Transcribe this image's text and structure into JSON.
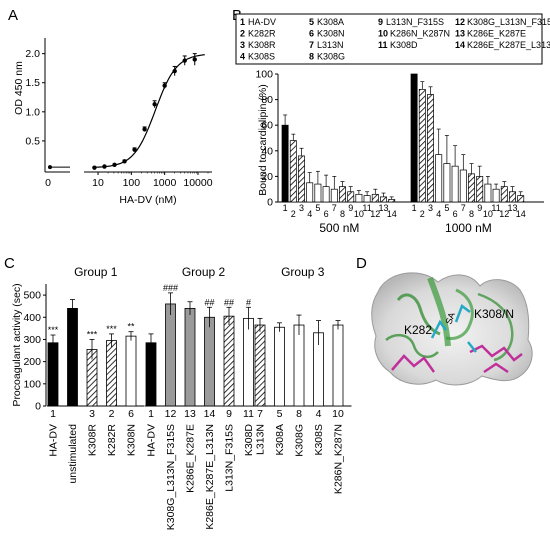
{
  "panels": {
    "A": {
      "label": "A",
      "chart_data": {
        "type": "line",
        "xlabel": "HA-DV (nM)",
        "ylabel": "OD 450 nm",
        "xscale": "log",
        "xlim": [
          5,
          20000
        ],
        "ylim": [
          0,
          2.2
        ],
        "xticks": [
          "0",
          "10",
          "100",
          "1000",
          "10000"
        ],
        "yticks": [
          "0.5",
          "1.0",
          "1.5",
          "2.0"
        ],
        "zero_point": {
          "x": 0,
          "y": 0.05
        },
        "points": [
          {
            "x": 7.8,
            "y": 0.04,
            "err": 0.01
          },
          {
            "x": 15.6,
            "y": 0.06,
            "err": 0.01
          },
          {
            "x": 31.3,
            "y": 0.09,
            "err": 0.01
          },
          {
            "x": 62.5,
            "y": 0.15,
            "err": 0.02
          },
          {
            "x": 125,
            "y": 0.35,
            "err": 0.03
          },
          {
            "x": 250,
            "y": 0.7,
            "err": 0.04
          },
          {
            "x": 500,
            "y": 1.13,
            "err": 0.06
          },
          {
            "x": 1000,
            "y": 1.45,
            "err": 0.05
          },
          {
            "x": 2000,
            "y": 1.7,
            "err": 0.08
          },
          {
            "x": 4000,
            "y": 1.88,
            "err": 0.08
          },
          {
            "x": 8000,
            "y": 1.9,
            "err": 0.1
          }
        ]
      }
    },
    "B": {
      "label": "B",
      "legend": [
        {
          "n": "1",
          "name": "HA-DV"
        },
        {
          "n": "5",
          "name": "K308A"
        },
        {
          "n": "9",
          "name": "L313N_F315S"
        },
        {
          "n": "12",
          "name": "K308G_L313N_F315S"
        },
        {
          "n": "2",
          "name": "K282R"
        },
        {
          "n": "6",
          "name": "K308N"
        },
        {
          "n": "10",
          "name": "K286N_K287N"
        },
        {
          "n": "13",
          "name": "K286E_K287E"
        },
        {
          "n": "3",
          "name": "K308R"
        },
        {
          "n": "7",
          "name": "L313N"
        },
        {
          "n": "11",
          "name": "K308D"
        },
        {
          "n": "14",
          "name": "K286E_K287E_L313N"
        },
        {
          "n": "4",
          "name": "K308S"
        },
        {
          "n": "8",
          "name": "K308G"
        }
      ],
      "chart_data": {
        "type": "bar",
        "ylabel": "Bound to cardiolipin (%)",
        "ylim": [
          0,
          100
        ],
        "yticks": [
          "0",
          "20",
          "40",
          "60",
          "80",
          "100"
        ],
        "groups": [
          {
            "label": "500 nM",
            "categories": [
              "1",
              "2",
              "3",
              "4",
              "5",
              "6",
              "7",
              "8",
              "9",
              "10",
              "11",
              "12",
              "13",
              "14"
            ],
            "values": [
              60,
              48,
              36,
              15,
              14,
              12,
              10,
              12,
              8,
              6,
              5,
              6,
              4,
              2
            ],
            "errors": [
              8,
              5,
              6,
              8,
              10,
              9,
              10,
              4,
              4,
              3,
              3,
              4,
              3,
              2
            ],
            "fills": [
              "solid",
              "hatch",
              "hatch",
              "open",
              "open",
              "open",
              "open",
              "hatch",
              "hatch",
              "open",
              "open",
              "hatch",
              "hatch",
              "hatch"
            ]
          },
          {
            "label": "1000 nM",
            "categories": [
              "1",
              "2",
              "3",
              "4",
              "5",
              "6",
              "7",
              "8",
              "9",
              "10",
              "11",
              "12",
              "13",
              "14"
            ],
            "values": [
              100,
              88,
              84,
              37,
              30,
              28,
              25,
              22,
              20,
              14,
              10,
              12,
              8,
              5
            ],
            "errors": [
              0,
              6,
              6,
              20,
              22,
              16,
              12,
              8,
              8,
              6,
              4,
              4,
              4,
              3
            ],
            "fills": [
              "solid",
              "hatch",
              "hatch",
              "open",
              "open",
              "open",
              "open",
              "hatch",
              "hatch",
              "open",
              "open",
              "hatch",
              "hatch",
              "hatch"
            ]
          }
        ]
      }
    },
    "C": {
      "label": "C",
      "chart_data": {
        "type": "bar",
        "ylabel": "Procoagulant activity (sec)",
        "ylim": [
          0,
          550
        ],
        "yticks": [
          "0",
          "100",
          "200",
          "300",
          "400",
          "500"
        ],
        "groups": [
          {
            "title": "Group 1",
            "numbers": [
              "1",
              "",
              "3",
              "2",
              "6"
            ],
            "names": [
              "HA-DV",
              "unstimulated",
              "K308R",
              "K282R",
              "K308N"
            ],
            "values": [
              285,
              440,
              255,
              295,
              315
            ],
            "errors": [
              35,
              40,
              45,
              30,
              20
            ],
            "fills": [
              "solid",
              "solid",
              "hatch",
              "hatch",
              "open"
            ],
            "marks": [
              "***",
              "",
              "***",
              "***",
              "**"
            ]
          },
          {
            "title": "Group 2",
            "numbers": [
              "1",
              "12",
              "13",
              "14",
              "9",
              "11"
            ],
            "names": [
              "HA-DV",
              "K308G_L313N_F315S",
              "K286E_K287E",
              "K286E_K287E_L313N",
              "L313N_F315S",
              "K308D"
            ],
            "values": [
              285,
              460,
              440,
              400,
              405,
              395
            ],
            "errors": [
              40,
              50,
              30,
              45,
              40,
              50
            ],
            "fills": [
              "solid",
              "gray",
              "gray",
              "gray",
              "hatch",
              "open"
            ],
            "marks": [
              "",
              "###",
              "",
              "##",
              "##",
              "#"
            ]
          },
          {
            "title": "Group 3",
            "numbers": [
              "7",
              "5",
              "8",
              "4",
              "10"
            ],
            "names": [
              "L313N",
              "K308A",
              "K308G",
              "K308S",
              "K286N_K287N"
            ],
            "values": [
              365,
              355,
              365,
              330,
              365
            ],
            "errors": [
              30,
              20,
              45,
              55,
              20
            ],
            "fills": [
              "hatch",
              "open",
              "open",
              "open",
              "open"
            ],
            "marks": [
              "",
              "",
              "",
              "",
              ""
            ]
          }
        ]
      }
    },
    "D": {
      "label": "D",
      "annotations": [
        "K282",
        "K308/N",
        "SA"
      ]
    }
  }
}
